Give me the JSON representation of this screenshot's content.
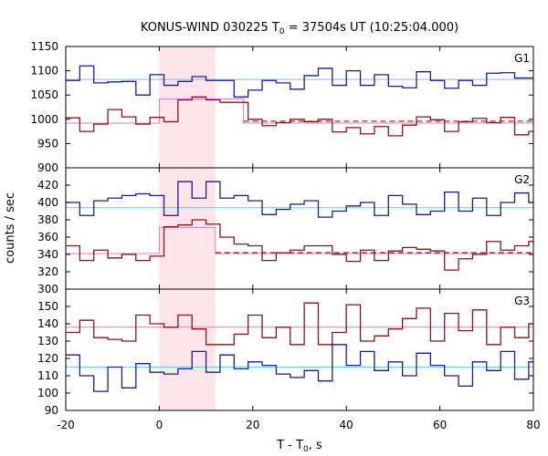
{
  "chart_data": {
    "type": "line",
    "title": {
      "prefix": "KONUS-WIND 030225 T",
      "sub": "0",
      "suffix": " = 37504s UT (10:25:04.000)"
    },
    "xlabel": {
      "prefix": "T - T",
      "sub": "0",
      "suffix": ", s"
    },
    "ylabel": "counts / sec",
    "xlim": [
      -20,
      80
    ],
    "x_ticks": [
      -20,
      0,
      20,
      40,
      60,
      80
    ],
    "highlight_interval": [
      0,
      12
    ],
    "colors": {
      "blue": "#1a1a9c",
      "red": "#8c1414",
      "background_fit": "#6ec8e6",
      "signal_fit": "#e07ad8",
      "highlight": "#fde4e8"
    },
    "panels": [
      {
        "label": "G1",
        "ylim": [
          900,
          1150
        ],
        "y_ticks": [
          900,
          950,
          1000,
          1050,
          1100,
          1150
        ],
        "blue_background": 1082,
        "red_background": 996,
        "red_fit": {
          "interval": [
            0,
            18
          ],
          "level": 1042,
          "outside_level": 992
        },
        "blue_step": [
          [
            -20,
            1080
          ],
          [
            -17,
            1110
          ],
          [
            -14,
            1075
          ],
          [
            -11,
            1077
          ],
          [
            -8,
            1078
          ],
          [
            -5,
            1050
          ],
          [
            -2,
            1092
          ],
          [
            1,
            1070
          ],
          [
            4,
            1078
          ],
          [
            7,
            1088
          ],
          [
            10,
            1080
          ],
          [
            13,
            1080
          ],
          [
            16,
            1046
          ],
          [
            19,
            1060
          ],
          [
            22,
            1080
          ],
          [
            25,
            1075
          ],
          [
            28,
            1062
          ],
          [
            31,
            1090
          ],
          [
            34,
            1105
          ],
          [
            37,
            1070
          ],
          [
            40,
            1100
          ],
          [
            43,
            1070
          ],
          [
            46,
            1092
          ],
          [
            49,
            1068
          ],
          [
            52,
            1065
          ],
          [
            55,
            1098
          ],
          [
            58,
            1080
          ],
          [
            61,
            1064
          ],
          [
            64,
            1080
          ],
          [
            67,
            1070
          ],
          [
            70,
            1095
          ],
          [
            73,
            1096
          ],
          [
            76,
            1085
          ],
          [
            79,
            1085
          ]
        ],
        "red_step": [
          [
            -20,
            1003
          ],
          [
            -17,
            975
          ],
          [
            -14,
            990
          ],
          [
            -11,
            1020
          ],
          [
            -8,
            1005
          ],
          [
            -5,
            990
          ],
          [
            -2,
            1004
          ],
          [
            1,
            995
          ],
          [
            4,
            1040
          ],
          [
            7,
            1046
          ],
          [
            10,
            1040
          ],
          [
            13,
            1035
          ],
          [
            16,
            1035
          ],
          [
            19,
            1000
          ],
          [
            22,
            987
          ],
          [
            25,
            993
          ],
          [
            28,
            1000
          ],
          [
            31,
            995
          ],
          [
            34,
            1000
          ],
          [
            37,
            974
          ],
          [
            40,
            983
          ],
          [
            43,
            970
          ],
          [
            46,
            985
          ],
          [
            49,
            966
          ],
          [
            52,
            988
          ],
          [
            55,
            1005
          ],
          [
            58,
            999
          ],
          [
            61,
            975
          ],
          [
            64,
            995
          ],
          [
            67,
            1002
          ],
          [
            70,
            993
          ],
          [
            73,
            1004
          ],
          [
            76,
            968
          ],
          [
            79,
            975
          ]
        ]
      },
      {
        "label": "G2",
        "ylim": [
          300,
          440
        ],
        "y_ticks": [
          300,
          320,
          340,
          360,
          380,
          400,
          420
        ],
        "blue_background": 394,
        "red_background": 342,
        "red_fit": {
          "interval": [
            0,
            12
          ],
          "level": 371,
          "outside_level": 341
        },
        "blue_step": [
          [
            -20,
            400
          ],
          [
            -17,
            385
          ],
          [
            -14,
            402
          ],
          [
            -11,
            405
          ],
          [
            -8,
            408
          ],
          [
            -5,
            410
          ],
          [
            -2,
            408
          ],
          [
            1,
            385
          ],
          [
            4,
            424
          ],
          [
            7,
            405
          ],
          [
            10,
            424
          ],
          [
            13,
            405
          ],
          [
            16,
            408
          ],
          [
            19,
            402
          ],
          [
            22,
            386
          ],
          [
            25,
            392
          ],
          [
            28,
            398
          ],
          [
            31,
            402
          ],
          [
            34,
            383
          ],
          [
            37,
            390
          ],
          [
            40,
            396
          ],
          [
            43,
            400
          ],
          [
            46,
            385
          ],
          [
            49,
            408
          ],
          [
            52,
            398
          ],
          [
            55,
            386
          ],
          [
            58,
            390
          ],
          [
            61,
            412
          ],
          [
            64,
            390
          ],
          [
            67,
            405
          ],
          [
            70,
            385
          ],
          [
            73,
            400
          ],
          [
            76,
            411
          ],
          [
            79,
            400
          ]
        ],
        "red_step": [
          [
            -20,
            350
          ],
          [
            -17,
            333
          ],
          [
            -14,
            345
          ],
          [
            -11,
            336
          ],
          [
            -8,
            340
          ],
          [
            -5,
            333
          ],
          [
            -2,
            338
          ],
          [
            1,
            372
          ],
          [
            4,
            374
          ],
          [
            7,
            380
          ],
          [
            10,
            375
          ],
          [
            13,
            360
          ],
          [
            16,
            352
          ],
          [
            19,
            350
          ],
          [
            22,
            333
          ],
          [
            25,
            342
          ],
          [
            28,
            345
          ],
          [
            31,
            350
          ],
          [
            34,
            350
          ],
          [
            37,
            340
          ],
          [
            40,
            332
          ],
          [
            43,
            345
          ],
          [
            46,
            333
          ],
          [
            49,
            344
          ],
          [
            52,
            348
          ],
          [
            55,
            346
          ],
          [
            58,
            344
          ],
          [
            61,
            322
          ],
          [
            64,
            335
          ],
          [
            67,
            340
          ],
          [
            70,
            355
          ],
          [
            73,
            345
          ],
          [
            76,
            350
          ],
          [
            79,
            355
          ]
        ]
      },
      {
        "label": "G3",
        "ylim": [
          90,
          160
        ],
        "y_ticks": [
          90,
          100,
          110,
          120,
          130,
          140,
          150
        ],
        "blue_background": 115,
        "red_background": 138,
        "blue_step": [
          [
            -20,
            122
          ],
          [
            -17,
            110
          ],
          [
            -14,
            101
          ],
          [
            -11,
            115
          ],
          [
            -8,
            103
          ],
          [
            -5,
            117
          ],
          [
            -2,
            112
          ],
          [
            1,
            111
          ],
          [
            4,
            114
          ],
          [
            7,
            124
          ],
          [
            10,
            112
          ],
          [
            13,
            122
          ],
          [
            16,
            114
          ],
          [
            19,
            118
          ],
          [
            22,
            116
          ],
          [
            25,
            111
          ],
          [
            28,
            109
          ],
          [
            31,
            113
          ],
          [
            34,
            107
          ],
          [
            37,
            128
          ],
          [
            40,
            116
          ],
          [
            43,
            124
          ],
          [
            46,
            113
          ],
          [
            49,
            118
          ],
          [
            52,
            110
          ],
          [
            55,
            123
          ],
          [
            58,
            116
          ],
          [
            61,
            110
          ],
          [
            64,
            104
          ],
          [
            67,
            118
          ],
          [
            70,
            113
          ],
          [
            73,
            124
          ],
          [
            76,
            108
          ],
          [
            79,
            118
          ]
        ],
        "red_step": [
          [
            -20,
            135
          ],
          [
            -17,
            142
          ],
          [
            -14,
            132
          ],
          [
            -11,
            131
          ],
          [
            -8,
            130
          ],
          [
            -5,
            145
          ],
          [
            -2,
            140
          ],
          [
            1,
            138
          ],
          [
            4,
            145
          ],
          [
            7,
            137
          ],
          [
            10,
            128
          ],
          [
            13,
            128
          ],
          [
            16,
            134
          ],
          [
            19,
            145
          ],
          [
            22,
            132
          ],
          [
            25,
            138
          ],
          [
            28,
            128
          ],
          [
            31,
            152
          ],
          [
            34,
            128
          ],
          [
            37,
            135
          ],
          [
            40,
            151
          ],
          [
            43,
            130
          ],
          [
            46,
            133
          ],
          [
            49,
            137
          ],
          [
            52,
            143
          ],
          [
            55,
            149
          ],
          [
            58,
            130
          ],
          [
            61,
            146
          ],
          [
            64,
            136
          ],
          [
            67,
            148
          ],
          [
            70,
            128
          ],
          [
            73,
            138
          ],
          [
            76,
            132
          ],
          [
            79,
            140
          ]
        ]
      }
    ]
  }
}
